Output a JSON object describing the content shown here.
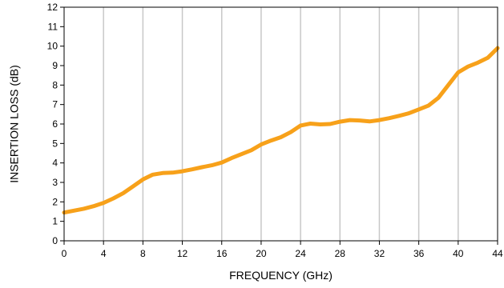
{
  "chart_data": {
    "type": "line",
    "title": "",
    "xlabel": "FREQUENCY (GHz)",
    "ylabel": "INSERTION LOSS (dB)",
    "xlim": [
      0,
      44
    ],
    "ylim": [
      0,
      12
    ],
    "x_ticks": [
      "0",
      "4",
      "8",
      "12",
      "16",
      "20",
      "24",
      "28",
      "32",
      "36",
      "40",
      "44"
    ],
    "y_ticks": [
      "0",
      "1",
      "2",
      "3",
      "4",
      "5",
      "6",
      "7",
      "8",
      "9",
      "10",
      "11",
      "12"
    ],
    "grid": {
      "vertical": true,
      "horizontal": false
    },
    "legend": "none",
    "colors": {
      "line": "#f7a11a",
      "grid": "#c8c8c8",
      "axis": "#000000"
    },
    "series": [
      {
        "x": [
          0,
          1,
          2,
          3,
          4,
          5,
          6,
          7,
          8,
          9,
          10,
          11,
          12,
          13,
          14,
          15,
          16,
          17,
          18,
          19,
          20,
          21,
          22,
          23,
          24,
          25,
          26,
          27,
          28,
          29,
          30,
          31,
          32,
          33,
          34,
          35,
          36,
          37,
          38,
          39,
          40,
          41,
          42,
          43,
          44
        ],
        "y": [
          1.45,
          1.55,
          1.65,
          1.78,
          1.95,
          2.18,
          2.45,
          2.8,
          3.15,
          3.4,
          3.48,
          3.5,
          3.57,
          3.67,
          3.78,
          3.88,
          4.02,
          4.25,
          4.45,
          4.65,
          4.95,
          5.15,
          5.32,
          5.58,
          5.92,
          6.02,
          5.98,
          6.0,
          6.12,
          6.2,
          6.18,
          6.13,
          6.2,
          6.3,
          6.42,
          6.55,
          6.75,
          6.95,
          7.35,
          8.0,
          8.65,
          8.95,
          9.15,
          9.4,
          9.9
        ]
      }
    ]
  }
}
